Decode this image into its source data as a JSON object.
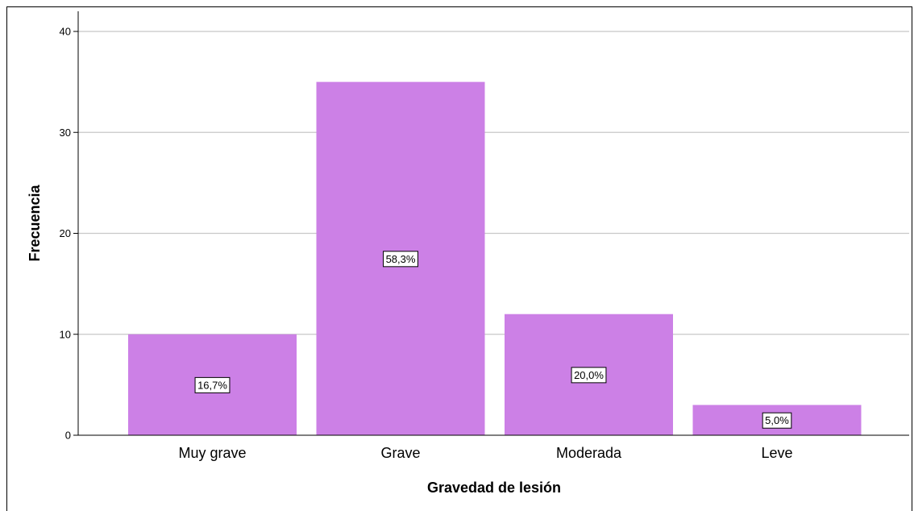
{
  "chart_data": {
    "type": "bar",
    "categories": [
      "Muy grave",
      "Grave",
      "Moderada",
      "Leve"
    ],
    "values": [
      10,
      35,
      12,
      3
    ],
    "data_labels": [
      "16,7%",
      "58,3%",
      "20,0%",
      "5,0%"
    ],
    "xlabel": "Gravedad de lesión",
    "ylabel": "Frecuencia",
    "ylim": [
      0,
      40
    ],
    "yticks": [
      0,
      10,
      20,
      30,
      40
    ],
    "grid": true,
    "bar_color": "#cc80e6",
    "grid_color": "#c8c8c8"
  }
}
